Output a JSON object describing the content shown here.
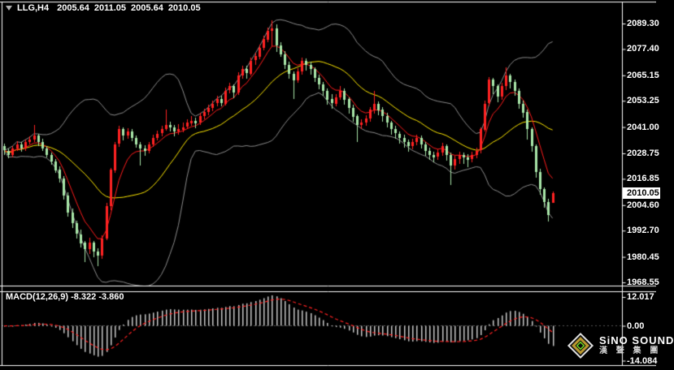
{
  "header": {
    "symbol_timeframe": "LLG,H4",
    "open": "2005.64",
    "high": "2011.05",
    "low": "2005.64",
    "close": "2010.05"
  },
  "macd_panel": {
    "label": "MACD(12,26,9) -8.322 -3.860",
    "axis_ticks": [
      "12.017",
      "0.00",
      "-14.084"
    ]
  },
  "price_axis": {
    "ticks": [
      "2089.30",
      "2077.40",
      "2065.15",
      "2053.25",
      "2041.00",
      "2028.75",
      "2016.85",
      "2004.60",
      "1992.70",
      "1980.45",
      "1968.55"
    ],
    "current_price": "2010.05"
  },
  "logo": {
    "title": "SiNO SOUND",
    "subtitle": "漢 聲 集 團"
  },
  "colors": {
    "background": "#000000",
    "border": "#FFFFFF",
    "up_candle": "#FF2222",
    "down_candle": "#A8E6A8",
    "ma_fast": "#FF1C1C",
    "ma_slow": "#FFE800",
    "band": "#8C8C8C",
    "macd_histogram": "#C8C8C8",
    "macd_signal": "#FF2222",
    "axis_text": "#FFFFFF",
    "badge_bg": "#FFFFFF",
    "badge_text": "#000000"
  },
  "chart_data": {
    "type": "candlestick",
    "symbol": "LLG",
    "timeframe": "H4",
    "current_bar": {
      "open": 2005.64,
      "high": 2011.05,
      "low": 2005.64,
      "close": 2010.05
    },
    "price_axis_range": [
      1968.55,
      2089.3
    ],
    "up_color_convention": "red-up-green-down",
    "overlays": [
      "bollinger-upper-gray",
      "bollinger-lower-gray",
      "ma-slow-yellow",
      "ma-fast-red"
    ],
    "indicator": {
      "name": "MACD",
      "params": [
        12,
        26,
        9
      ],
      "macd_value": -8.322,
      "signal_value": -3.86,
      "scale_max": 12.017,
      "scale_zero": 0.0,
      "scale_min": -14.084
    },
    "candles": [
      [
        2032,
        2033.2,
        2027.8,
        2030
      ],
      [
        2030,
        2031,
        2026.5,
        2028
      ],
      [
        2028,
        2032.2,
        2027,
        2031
      ],
      [
        2031,
        2034.5,
        2030,
        2033
      ],
      [
        2033,
        2034,
        2029.5,
        2031
      ],
      [
        2031,
        2035.2,
        2030,
        2034
      ],
      [
        2034,
        2036.5,
        2032.8,
        2035
      ],
      [
        2035,
        2042,
        2034,
        2037
      ],
      [
        2037,
        2038,
        2032.5,
        2034
      ],
      [
        2034,
        2035.5,
        2029.8,
        2031
      ],
      [
        2031,
        2032,
        2026.6,
        2028
      ],
      [
        2028,
        2029.2,
        2023.5,
        2025
      ],
      [
        2025,
        2026,
        2019.5,
        2021
      ],
      [
        2021,
        2022.5,
        2015,
        2017
      ],
      [
        2017,
        2018,
        2007,
        2009
      ],
      [
        2009,
        2010.5,
        1999,
        2001
      ],
      [
        2001,
        2003,
        1994,
        1996
      ],
      [
        1996,
        1997.5,
        1989,
        1991
      ],
      [
        1991,
        1993,
        1984.5,
        1987
      ],
      [
        1987,
        1988,
        1978,
        1984
      ],
      [
        1984,
        1989.5,
        1982,
        1987
      ],
      [
        1987,
        1988,
        1980.5,
        1983
      ],
      [
        1983,
        1984.5,
        1976,
        1981
      ],
      [
        1981,
        1990.5,
        1979.5,
        1989
      ],
      [
        1989,
        2005.5,
        1988,
        2004
      ],
      [
        2004,
        2022,
        2002.5,
        2021
      ],
      [
        2021,
        2034,
        2019.5,
        2033
      ],
      [
        2033,
        2041.5,
        2031.5,
        2040
      ],
      [
        2040,
        2041,
        2035,
        2037
      ],
      [
        2037,
        2040.5,
        2035.5,
        2039
      ],
      [
        2039,
        2040,
        2034.2,
        2036
      ],
      [
        2036,
        2037,
        2031.5,
        2033
      ],
      [
        2033,
        2034,
        2023,
        2031
      ],
      [
        2031,
        2032.5,
        2027.5,
        2030
      ],
      [
        2030,
        2034.2,
        2029,
        2033
      ],
      [
        2033,
        2037.5,
        2032,
        2036
      ],
      [
        2036,
        2039.2,
        2034.8,
        2038
      ],
      [
        2038,
        2041.5,
        2036.5,
        2040
      ],
      [
        2040,
        2049,
        2039,
        2042
      ],
      [
        2042,
        2043.5,
        2038.8,
        2041
      ],
      [
        2041,
        2042,
        2036.8,
        2039
      ],
      [
        2039,
        2042.5,
        2037.5,
        2040
      ],
      [
        2040,
        2043,
        2038.5,
        2041
      ],
      [
        2041,
        2044.5,
        2039.8,
        2043
      ],
      [
        2043,
        2046,
        2041.5,
        2044
      ],
      [
        2044,
        2045.5,
        2040.5,
        2043
      ],
      [
        2043,
        2047.5,
        2042,
        2046
      ],
      [
        2046,
        2049.5,
        2044.5,
        2048
      ],
      [
        2048,
        2051.5,
        2046.5,
        2050
      ],
      [
        2050,
        2053.5,
        2048.5,
        2052
      ],
      [
        2052,
        2055.5,
        2050.5,
        2054
      ],
      [
        2054,
        2055.5,
        2050.5,
        2052
      ],
      [
        2052,
        2059.5,
        2051,
        2058
      ],
      [
        2058,
        2061.5,
        2056.5,
        2060
      ],
      [
        2060,
        2061,
        2054.5,
        2057
      ],
      [
        2057,
        2066.5,
        2056,
        2065
      ],
      [
        2065,
        2069.5,
        2063.5,
        2068
      ],
      [
        2068,
        2069.5,
        2063.5,
        2066
      ],
      [
        2066,
        2073.5,
        2065,
        2072
      ],
      [
        2072,
        2075.5,
        2070,
        2074
      ],
      [
        2074,
        2079.5,
        2072.5,
        2078
      ],
      [
        2078,
        2083.5,
        2076.5,
        2082
      ],
      [
        2082,
        2087.5,
        2080.5,
        2086
      ],
      [
        2086,
        2091,
        2079,
        2087
      ],
      [
        2087,
        2089,
        2076,
        2079
      ],
      [
        2079,
        2080.5,
        2073.5,
        2075
      ],
      [
        2075,
        2076.5,
        2068,
        2070
      ],
      [
        2070,
        2071.5,
        2063.5,
        2066
      ],
      [
        2066,
        2067,
        2054,
        2063
      ],
      [
        2063,
        2068.5,
        2061.5,
        2067
      ],
      [
        2067,
        2073.5,
        2065.5,
        2072
      ],
      [
        2072,
        2073,
        2067.5,
        2070
      ],
      [
        2070,
        2071.5,
        2065.5,
        2068
      ],
      [
        2068,
        2069,
        2062,
        2064
      ],
      [
        2064,
        2065.5,
        2058.8,
        2061
      ],
      [
        2061,
        2062,
        2055.5,
        2058
      ],
      [
        2058,
        2059,
        2051.5,
        2054
      ],
      [
        2054,
        2056.5,
        2049.5,
        2052
      ],
      [
        2052,
        2056.5,
        2051,
        2055
      ],
      [
        2055,
        2060,
        2053.5,
        2058
      ],
      [
        2058,
        2059,
        2051.5,
        2054
      ],
      [
        2054,
        2055,
        2047.5,
        2050
      ],
      [
        2050,
        2051.5,
        2043.5,
        2046
      ],
      [
        2046,
        2047,
        2034,
        2042
      ],
      [
        2042,
        2044.5,
        2040,
        2043
      ],
      [
        2043,
        2046.5,
        2041.5,
        2045
      ],
      [
        2045,
        2050.5,
        2043.5,
        2049
      ],
      [
        2049,
        2058,
        2047.5,
        2052
      ],
      [
        2052,
        2053,
        2046.5,
        2049
      ],
      [
        2049,
        2050.5,
        2043.5,
        2046
      ],
      [
        2046,
        2047.5,
        2040.5,
        2043
      ],
      [
        2043,
        2044,
        2037.5,
        2040
      ],
      [
        2040,
        2041.5,
        2035.5,
        2038
      ],
      [
        2038,
        2039,
        2033.5,
        2036
      ],
      [
        2036,
        2037.5,
        2031.5,
        2034
      ],
      [
        2034,
        2035,
        2029.5,
        2032
      ],
      [
        2032,
        2035.5,
        2030.5,
        2034
      ],
      [
        2034,
        2037.5,
        2032.5,
        2036
      ],
      [
        2036,
        2037,
        2030.8,
        2033
      ],
      [
        2033,
        2034,
        2027.5,
        2030
      ],
      [
        2030,
        2031.5,
        2025.8,
        2028
      ],
      [
        2028,
        2029.5,
        2024.5,
        2027
      ],
      [
        2027,
        2030.5,
        2025.5,
        2029
      ],
      [
        2029,
        2033.5,
        2027.5,
        2032
      ],
      [
        2032,
        2033,
        2025.5,
        2028
      ],
      [
        2028,
        2029,
        2014,
        2023
      ],
      [
        2023,
        2027.5,
        2021,
        2026
      ],
      [
        2026,
        2029.5,
        2024,
        2028
      ],
      [
        2028,
        2029,
        2023.8,
        2027
      ],
      [
        2027,
        2028.5,
        2022.5,
        2026
      ],
      [
        2026,
        2029.5,
        2024.5,
        2028
      ],
      [
        2028,
        2031.5,
        2026.5,
        2030
      ],
      [
        2030,
        2041,
        2029,
        2040
      ],
      [
        2040,
        2053.5,
        2039,
        2052
      ],
      [
        2052,
        2064.5,
        2051,
        2063
      ],
      [
        2063,
        2064,
        2056.5,
        2060
      ],
      [
        2060,
        2061,
        2052.5,
        2055
      ],
      [
        2055,
        2061.5,
        2053.5,
        2060
      ],
      [
        2060,
        2069,
        2058.5,
        2065
      ],
      [
        2065,
        2066,
        2059,
        2062
      ],
      [
        2062,
        2063,
        2055.5,
        2058
      ],
      [
        2058,
        2059,
        2049.5,
        2052
      ],
      [
        2052,
        2053.5,
        2045.5,
        2048
      ],
      [
        2048,
        2049,
        2035,
        2040
      ],
      [
        2040,
        2041,
        2029.5,
        2032
      ],
      [
        2032,
        2033,
        2017.5,
        2020
      ],
      [
        2020,
        2021.5,
        2009.5,
        2012
      ],
      [
        2012,
        2013,
        2003.5,
        2006
      ],
      [
        2006,
        2007.5,
        1997,
        2000
      ],
      [
        2005.64,
        2011.05,
        2005.64,
        2010.05
      ]
    ]
  }
}
